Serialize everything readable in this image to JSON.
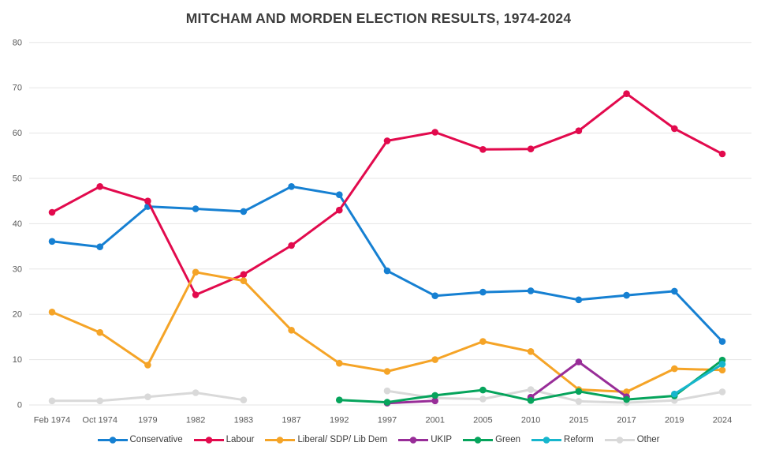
{
  "chart_data": {
    "type": "line",
    "title": "MITCHAM AND MORDEN ELECTION RESULTS, 1974-2024",
    "categories": [
      "Feb 1974",
      "Oct 1974",
      "1979",
      "1982",
      "1983",
      "1987",
      "1992",
      "1997",
      "2001",
      "2005",
      "2010",
      "2015",
      "2017",
      "2019",
      "2024"
    ],
    "series": [
      {
        "name": "Conservative",
        "color": "#1680d2",
        "values": [
          36.1,
          34.9,
          43.8,
          43.3,
          42.7,
          48.2,
          46.4,
          29.6,
          24.1,
          24.9,
          25.2,
          23.2,
          24.2,
          25.1,
          14.0
        ]
      },
      {
        "name": "Labour",
        "color": "#e20a4d",
        "values": [
          42.5,
          48.2,
          45.0,
          24.3,
          28.8,
          35.2,
          43.0,
          58.3,
          60.2,
          56.4,
          56.5,
          60.5,
          68.7,
          61.0,
          55.4
        ]
      },
      {
        "name": "Liberal/ SDP/ Lib Dem",
        "color": "#f5a427",
        "values": [
          20.5,
          16.0,
          8.8,
          29.3,
          27.4,
          16.5,
          9.2,
          7.4,
          10.0,
          14.0,
          11.8,
          3.4,
          2.9,
          8.0,
          7.7
        ]
      },
      {
        "name": "UKIP",
        "color": "#982d98",
        "values": [
          null,
          null,
          null,
          null,
          null,
          null,
          null,
          0.4,
          0.9,
          null,
          1.7,
          9.5,
          1.8,
          null,
          null
        ]
      },
      {
        "name": "Green",
        "color": "#06a45c",
        "values": [
          null,
          null,
          null,
          null,
          null,
          null,
          1.1,
          0.6,
          2.1,
          3.3,
          1.0,
          3.0,
          1.2,
          2.0,
          9.9
        ]
      },
      {
        "name": "Reform",
        "color": "#17b6cd",
        "values": [
          null,
          null,
          null,
          null,
          null,
          null,
          null,
          null,
          null,
          null,
          null,
          null,
          null,
          2.4,
          9.0
        ]
      },
      {
        "name": "Other",
        "color": "#d9d9d9",
        "values": [
          0.9,
          0.9,
          1.8,
          2.7,
          1.1,
          null,
          null,
          3.1,
          1.5,
          1.3,
          3.4,
          0.8,
          0.5,
          1.0,
          2.9
        ]
      }
    ],
    "draw_order": [
      6,
      0,
      1,
      2,
      3,
      4,
      5
    ],
    "ylim": [
      0,
      80
    ],
    "ytick_step": 10,
    "xlabel": "",
    "ylabel": "",
    "grid": "horizontal",
    "legend_position": "bottom"
  },
  "style": {
    "grid_color": "#e5e5e5",
    "axis_text_color": "#595959",
    "title_color": "#3d3d3d",
    "background": "#ffffff"
  }
}
